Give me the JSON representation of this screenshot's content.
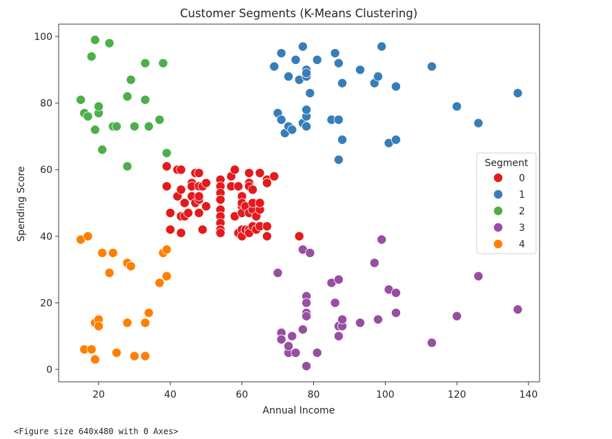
{
  "chart_data": {
    "type": "scatter",
    "title": "Customer Segments (K-Means Clustering)",
    "xlabel": "Annual Income",
    "ylabel": "Spending Score",
    "xlim": [
      10,
      140
    ],
    "ylim": [
      0,
      100
    ],
    "xticks": [
      20,
      40,
      60,
      80,
      100,
      120,
      140
    ],
    "yticks": [
      0,
      20,
      40,
      60,
      80,
      100
    ],
    "grid": false,
    "legend": {
      "title": "Segment",
      "placement": "right"
    },
    "series": [
      {
        "name": "0",
        "color": "#e41a1c",
        "points": [
          [
            39,
            61
          ],
          [
            42,
            60
          ],
          [
            43,
            60
          ],
          [
            39,
            55
          ],
          [
            40,
            47
          ],
          [
            40,
            42
          ],
          [
            42,
            52
          ],
          [
            43,
            54
          ],
          [
            44,
            50
          ],
          [
            43,
            46
          ],
          [
            43,
            41
          ],
          [
            44,
            46
          ],
          [
            45,
            47
          ],
          [
            46,
            56
          ],
          [
            46,
            52
          ],
          [
            46,
            55
          ],
          [
            47,
            50
          ],
          [
            47,
            59
          ],
          [
            48,
            59
          ],
          [
            48,
            51
          ],
          [
            48,
            47
          ],
          [
            48,
            55
          ],
          [
            48,
            52
          ],
          [
            49,
            42
          ],
          [
            49,
            55
          ],
          [
            50,
            49
          ],
          [
            50,
            56
          ],
          [
            54,
            57
          ],
          [
            54,
            55
          ],
          [
            54,
            53
          ],
          [
            54,
            51
          ],
          [
            54,
            48
          ],
          [
            54,
            46
          ],
          [
            54,
            44
          ],
          [
            54,
            42
          ],
          [
            54,
            41
          ],
          [
            57,
            55
          ],
          [
            57,
            58
          ],
          [
            58,
            60
          ],
          [
            58,
            46
          ],
          [
            59,
            55
          ],
          [
            59,
            41
          ],
          [
            60,
            49
          ],
          [
            60,
            47
          ],
          [
            60,
            42
          ],
          [
            60,
            52
          ],
          [
            60,
            50
          ],
          [
            60,
            40
          ],
          [
            61,
            42
          ],
          [
            61,
            49
          ],
          [
            62,
            59
          ],
          [
            62,
            56
          ],
          [
            62,
            55
          ],
          [
            62,
            47
          ],
          [
            62,
            42
          ],
          [
            62,
            41
          ],
          [
            63,
            48
          ],
          [
            63,
            50
          ],
          [
            63,
            54
          ],
          [
            63,
            43
          ],
          [
            64,
            42
          ],
          [
            64,
            46
          ],
          [
            65,
            48
          ],
          [
            65,
            59
          ],
          [
            65,
            50
          ],
          [
            65,
            43
          ],
          [
            67,
            43
          ],
          [
            67,
            57
          ],
          [
            67,
            56
          ],
          [
            67,
            40
          ],
          [
            69,
            58
          ],
          [
            76,
            40
          ]
        ]
      },
      {
        "name": "1",
        "color": "#377eb8",
        "points": [
          [
            69,
            91
          ],
          [
            70,
            77
          ],
          [
            71,
            95
          ],
          [
            71,
            75
          ],
          [
            72,
            71
          ],
          [
            73,
            88
          ],
          [
            73,
            73
          ],
          [
            74,
            72
          ],
          [
            75,
            93
          ],
          [
            76,
            87
          ],
          [
            77,
            97
          ],
          [
            77,
            74
          ],
          [
            78,
            90
          ],
          [
            78,
            88
          ],
          [
            78,
            76
          ],
          [
            78,
            89
          ],
          [
            78,
            78
          ],
          [
            78,
            73
          ],
          [
            79,
            83
          ],
          [
            81,
            93
          ],
          [
            85,
            75
          ],
          [
            86,
            95
          ],
          [
            87,
            63
          ],
          [
            87,
            75
          ],
          [
            87,
            92
          ],
          [
            88,
            86
          ],
          [
            88,
            69
          ],
          [
            93,
            90
          ],
          [
            97,
            86
          ],
          [
            98,
            88
          ],
          [
            99,
            97
          ],
          [
            101,
            68
          ],
          [
            103,
            85
          ],
          [
            103,
            69
          ],
          [
            113,
            91
          ],
          [
            120,
            79
          ],
          [
            126,
            74
          ],
          [
            137,
            83
          ]
        ]
      },
      {
        "name": "2",
        "color": "#4daf4a",
        "points": [
          [
            15,
            81
          ],
          [
            16,
            77
          ],
          [
            17,
            76
          ],
          [
            18,
            94
          ],
          [
            19,
            72
          ],
          [
            19,
            99
          ],
          [
            20,
            77
          ],
          [
            20,
            79
          ],
          [
            21,
            66
          ],
          [
            23,
            98
          ],
          [
            24,
            73
          ],
          [
            25,
            73
          ],
          [
            28,
            82
          ],
          [
            28,
            61
          ],
          [
            29,
            87
          ],
          [
            30,
            73
          ],
          [
            33,
            81
          ],
          [
            33,
            92
          ],
          [
            34,
            73
          ],
          [
            37,
            75
          ],
          [
            38,
            92
          ],
          [
            39,
            65
          ]
        ]
      },
      {
        "name": "3",
        "color": "#984ea3",
        "points": [
          [
            70,
            29
          ],
          [
            71,
            11
          ],
          [
            71,
            9
          ],
          [
            73,
            5
          ],
          [
            73,
            7
          ],
          [
            74,
            10
          ],
          [
            75,
            5
          ],
          [
            77,
            12
          ],
          [
            77,
            36
          ],
          [
            78,
            22
          ],
          [
            78,
            17
          ],
          [
            78,
            20
          ],
          [
            78,
            16
          ],
          [
            78,
            1
          ],
          [
            79,
            35
          ],
          [
            81,
            5
          ],
          [
            85,
            26
          ],
          [
            86,
            20
          ],
          [
            87,
            27
          ],
          [
            87,
            13
          ],
          [
            87,
            10
          ],
          [
            88,
            13
          ],
          [
            88,
            15
          ],
          [
            93,
            14
          ],
          [
            97,
            32
          ],
          [
            98,
            15
          ],
          [
            99,
            39
          ],
          [
            101,
            24
          ],
          [
            103,
            17
          ],
          [
            103,
            23
          ],
          [
            113,
            8
          ],
          [
            120,
            16
          ],
          [
            126,
            28
          ],
          [
            137,
            18
          ]
        ]
      },
      {
        "name": "4",
        "color": "#ff7f00",
        "points": [
          [
            15,
            39
          ],
          [
            16,
            6
          ],
          [
            17,
            40
          ],
          [
            18,
            6
          ],
          [
            19,
            3
          ],
          [
            19,
            14
          ],
          [
            20,
            15
          ],
          [
            20,
            13
          ],
          [
            21,
            35
          ],
          [
            23,
            29
          ],
          [
            24,
            35
          ],
          [
            25,
            5
          ],
          [
            28,
            14
          ],
          [
            28,
            32
          ],
          [
            29,
            31
          ],
          [
            30,
            4
          ],
          [
            33,
            4
          ],
          [
            33,
            14
          ],
          [
            34,
            17
          ],
          [
            37,
            26
          ],
          [
            38,
            35
          ],
          [
            39,
            36
          ],
          [
            39,
            28
          ]
        ]
      }
    ]
  },
  "footer": {
    "caption": "<Figure size 640x480 with 0 Axes>"
  }
}
